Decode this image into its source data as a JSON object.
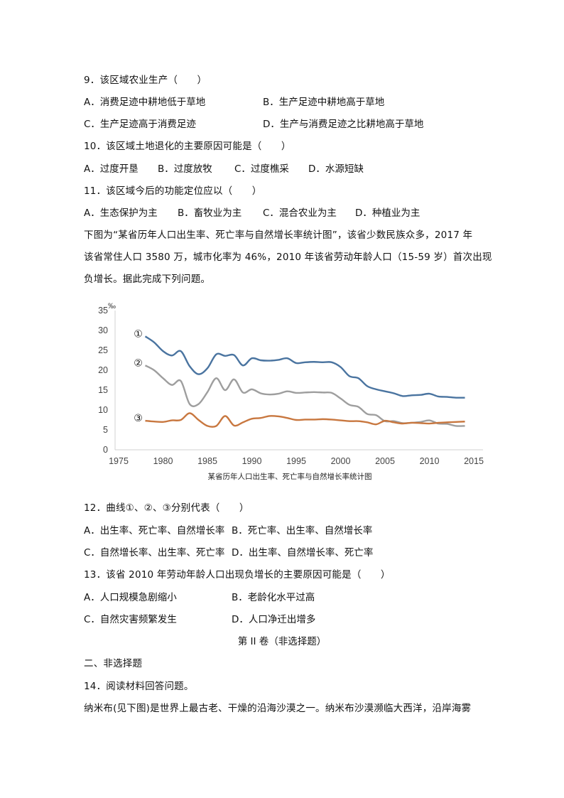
{
  "q9": {
    "stem": "9．该区域农业生产（　　）",
    "options": {
      "A": "A．消费足迹中耕地低于草地",
      "B": "B．生产足迹中耕地高于草地",
      "C": "C．生产足迹高于消费足迹",
      "D": "D．生产与消费足迹之比耕地高于草地"
    }
  },
  "q10": {
    "stem": "10．该区域土地退化的主要原因可能是（　　）",
    "options": {
      "A": "A．过度开垦",
      "B": "B．过度放牧",
      "C": "C．过度樵采",
      "D": "D．水源短缺"
    }
  },
  "q11": {
    "stem": "11．该区域今后的功能定位应以（　　）",
    "options": {
      "A": "A．生态保护为主",
      "B": "B．畜牧业为主",
      "C": "C．混合农业为主",
      "D": "D．种植业为主"
    }
  },
  "intro": {
    "line1": "下图为“某省历年人口出生率、死亡率与自然增长率统计图”，该省少数民族众多，2017 年",
    "line2": "该省常住人口 3580 万，城市化率为 46%，2010 年该省劳动年龄人口（15-59 岁）首次出现",
    "line3": "负增长。据此完成下列问题。"
  },
  "q12": {
    "stem": "12．曲线①、②、③分别代表（　　）",
    "options": {
      "A": "A．出生率、死亡率、自然增长率",
      "B": "B．死亡率、出生率、自然增长率",
      "C": "C．自然增长率、出生率、死亡率",
      "D": "D．出生率、自然增长率、死亡率"
    }
  },
  "q13": {
    "stem": "13．该省 2010 年劳动年龄人口出现负增长的主要原因可能是（　　）",
    "options": {
      "A": "A．人口规模急剧缩小",
      "B": "B．老龄化水平过高",
      "C": "C．自然灾害频繁发生",
      "D": "D．人口净迁出增多"
    }
  },
  "part2_title": "第 II 卷（非选择题）",
  "section2_heading": "二、非选择题",
  "q14": {
    "stem": "14．阅读材料回答问题。",
    "text": "纳米布(见下图)是世界上最古老、干燥的沿海沙漠之一。纳米布沙漠濒临大西洋，沿岸海雾"
  },
  "chart_data": {
    "type": "line",
    "title": "某省历年人口出生率、死亡率与自然增长率统计图",
    "xlabel": "",
    "ylabel": "‰",
    "xlim": [
      1975,
      2015
    ],
    "ylim": [
      0,
      35
    ],
    "x_ticks": [
      1975,
      1980,
      1985,
      1990,
      1995,
      2000,
      2005,
      2010,
      2015
    ],
    "y_ticks": [
      0,
      5,
      10,
      15,
      20,
      25,
      30,
      35
    ],
    "grid": false,
    "legend": "inline circled labels ①②③ at left of each curve",
    "x": [
      1978,
      1979,
      1980,
      1981,
      1982,
      1983,
      1984,
      1985,
      1986,
      1987,
      1988,
      1989,
      1990,
      1991,
      1992,
      1993,
      1994,
      1995,
      1996,
      1997,
      1998,
      1999,
      2000,
      2001,
      2002,
      2003,
      2004,
      2005,
      2006,
      2007,
      2008,
      2009,
      2010,
      2011,
      2012,
      2013,
      2014
    ],
    "series": [
      {
        "name": "①",
        "color": "#4a74a0",
        "values": [
          28.5,
          27.0,
          24.8,
          23.7,
          24.8,
          21.0,
          19.0,
          20.5,
          24.0,
          23.6,
          23.8,
          21.2,
          23.0,
          22.5,
          22.4,
          22.6,
          23.0,
          21.8,
          22.0,
          22.1,
          22.0,
          22.0,
          20.8,
          18.5,
          18.0,
          16.0,
          15.2,
          14.7,
          14.2,
          13.5,
          13.7,
          13.8,
          14.1,
          13.4,
          13.3,
          13.1,
          13.1
        ]
      },
      {
        "name": "②",
        "color": "#9e9e9e",
        "values": [
          21.2,
          20.0,
          18.0,
          16.3,
          17.3,
          11.5,
          11.5,
          14.5,
          18.0,
          15.0,
          17.7,
          14.4,
          15.2,
          14.2,
          13.9,
          14.1,
          14.7,
          14.3,
          14.4,
          14.5,
          14.4,
          14.3,
          12.9,
          11.3,
          10.8,
          9.0,
          8.7,
          7.2,
          7.2,
          6.7,
          6.8,
          7.0,
          7.4,
          6.6,
          6.5,
          6.0,
          6.0
        ]
      },
      {
        "name": "③",
        "color": "#c8773f",
        "values": [
          7.3,
          7.1,
          7.0,
          7.4,
          7.5,
          9.2,
          7.5,
          6.0,
          6.0,
          8.5,
          6.1,
          6.9,
          7.8,
          8.0,
          8.5,
          8.4,
          8.0,
          7.5,
          7.6,
          7.6,
          7.7,
          7.6,
          7.4,
          7.2,
          7.2,
          6.9,
          6.4,
          7.3,
          6.9,
          6.6,
          6.8,
          6.7,
          6.6,
          6.8,
          6.9,
          7.0,
          7.1
        ]
      }
    ]
  }
}
